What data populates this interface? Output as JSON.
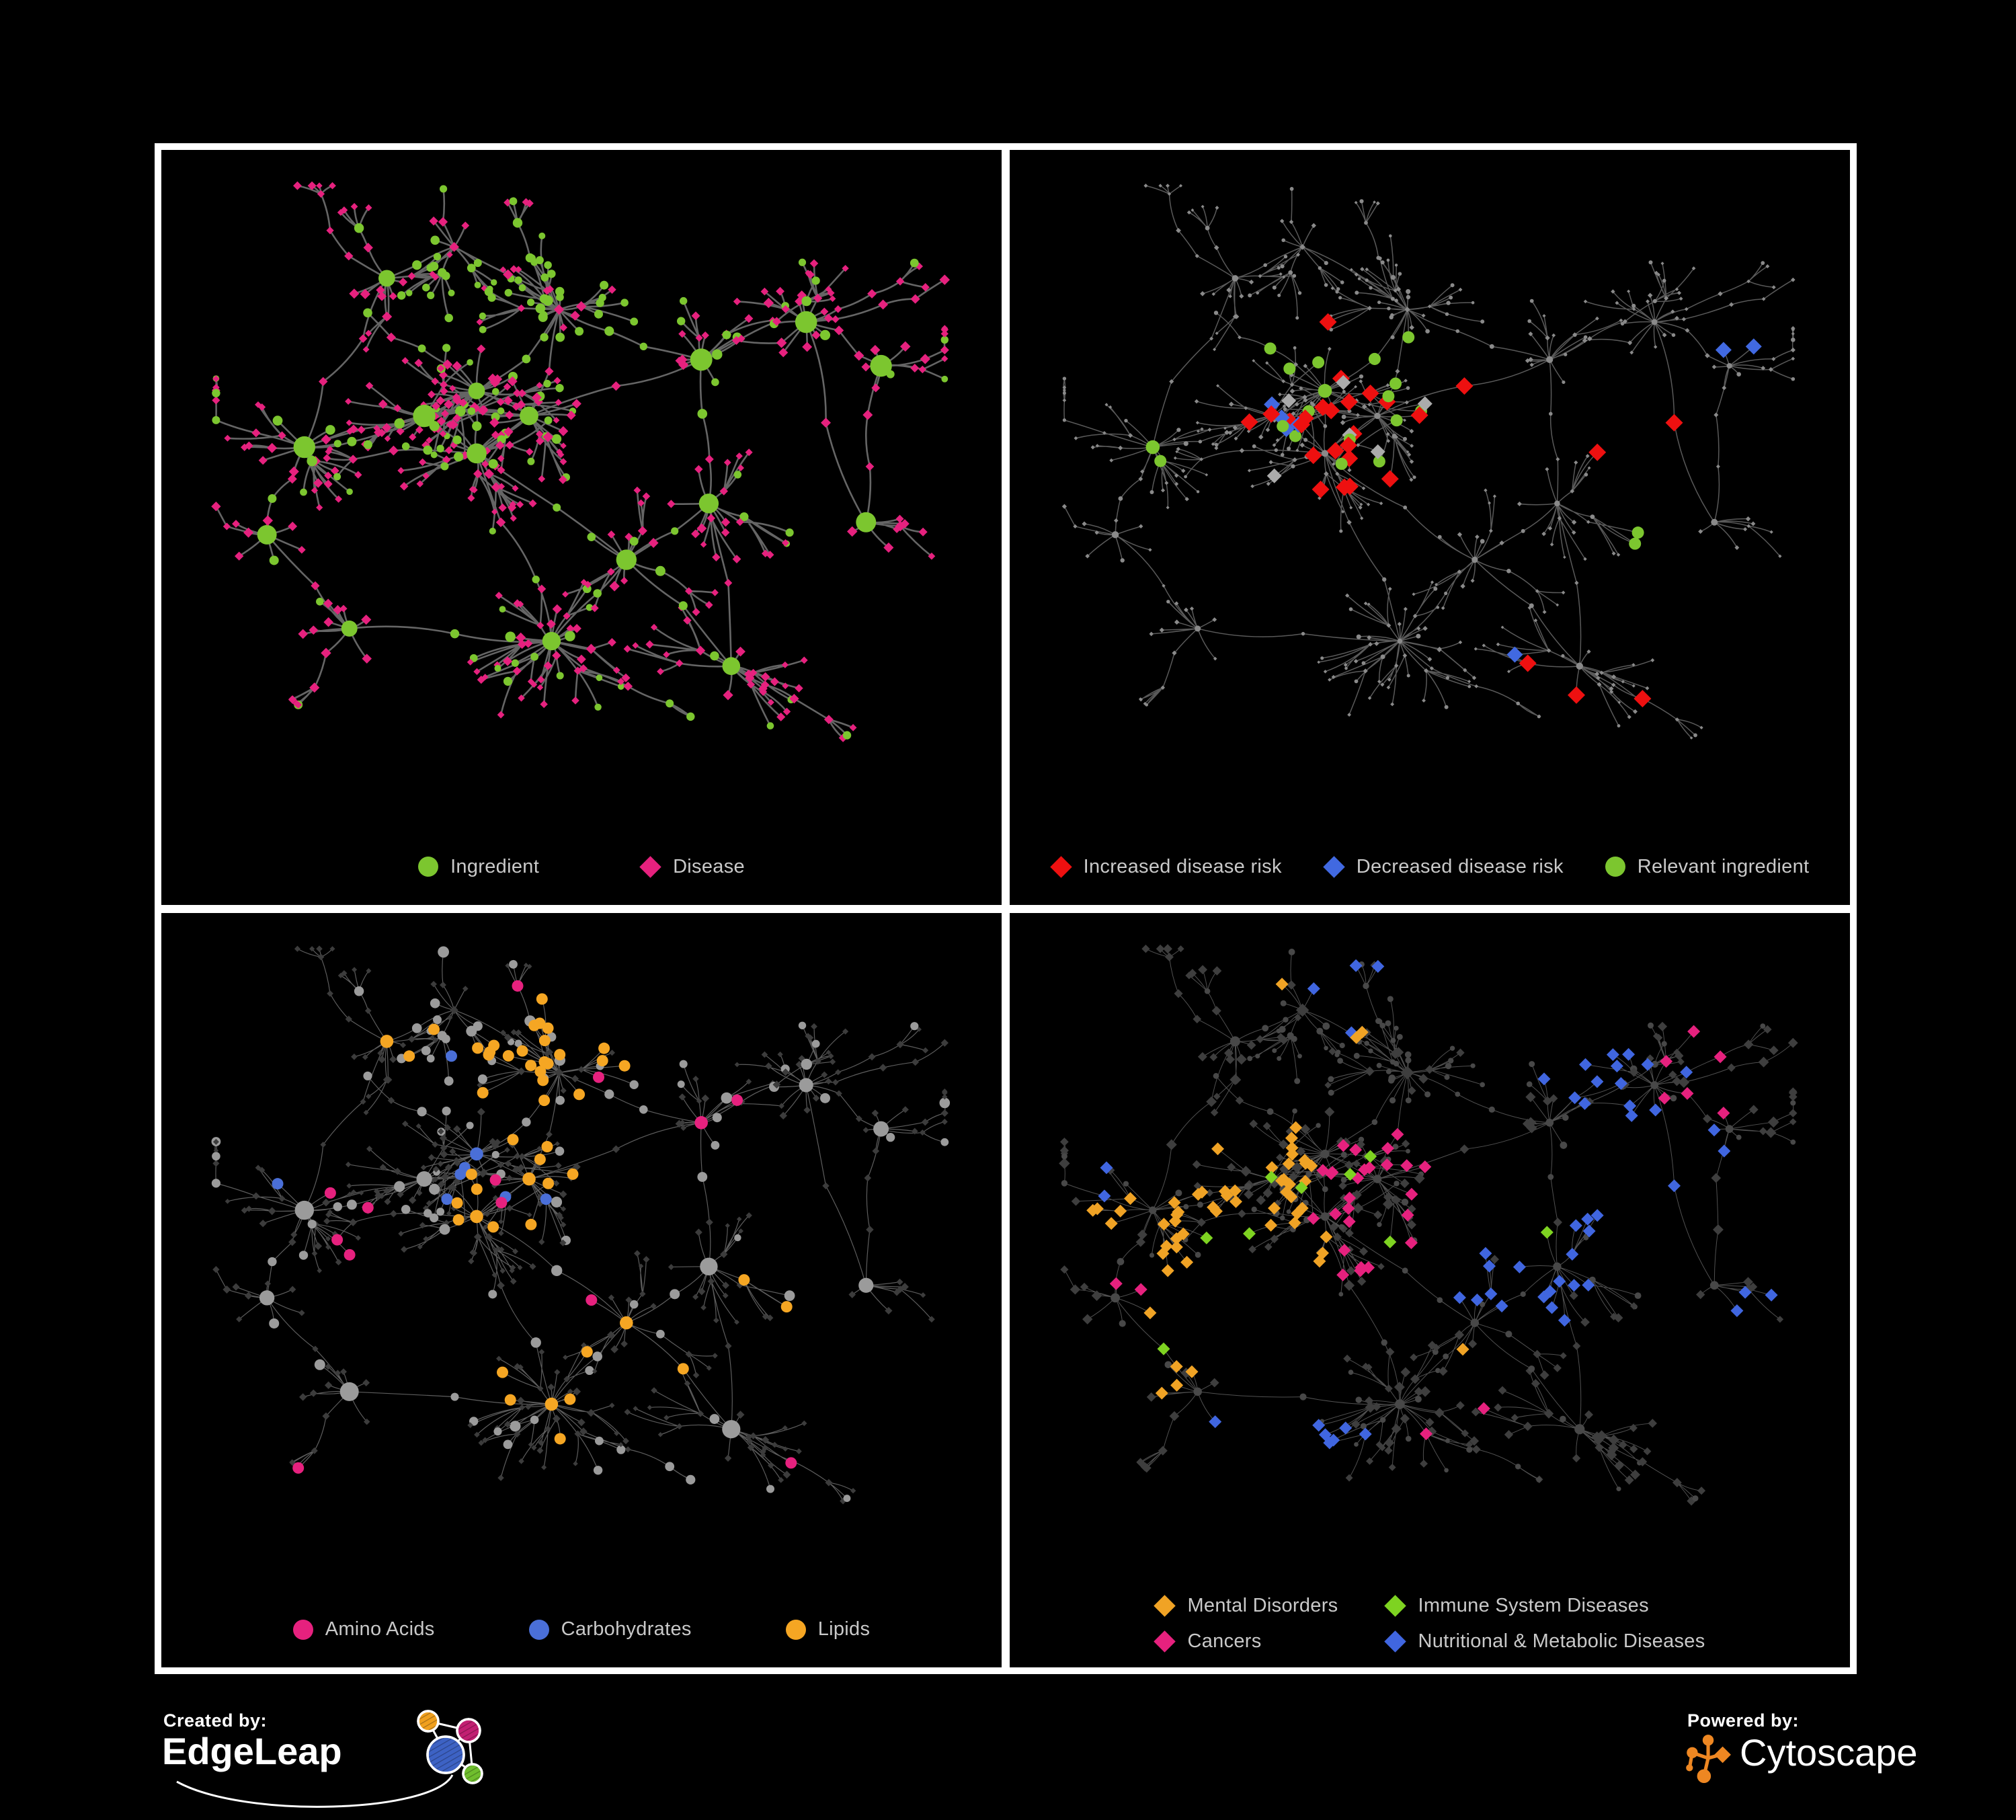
{
  "page": {
    "background": "#000000",
    "frame_color": "#FFFFFF",
    "legend_text_color": "#C9C9C9"
  },
  "panels": [
    {
      "name": "ingredient-disease-network",
      "legend": {
        "layout": "row",
        "gap": 150,
        "items": [
          {
            "label": "Ingredient",
            "shape": "circle",
            "color": "#7CC62F"
          },
          {
            "label": "Disease",
            "shape": "diamond",
            "color": "#E6217E"
          }
        ]
      },
      "paint": {
        "edge": {
          "color": "#6A6A6A",
          "width": 2.6,
          "opacity": 0.95
        },
        "ingredient": {
          "shape": "circle",
          "color": "#7CC62F",
          "leaf": 6.5,
          "hub": 14
        },
        "disease": {
          "shape": "diamond",
          "color": "#E6217E",
          "leaf": 6.5,
          "hub": 8.5
        },
        "highlights": []
      }
    },
    {
      "name": "disease-risk-network",
      "legend": {
        "layout": "row",
        "gap": 62,
        "items": [
          {
            "label": "Increased disease risk",
            "shape": "diamond",
            "color": "#EE1010"
          },
          {
            "label": "Decreased disease risk",
            "shape": "diamond",
            "color": "#4169E1"
          },
          {
            "label": "Relevant ingredient",
            "shape": "circle",
            "color": "#7CC62F"
          }
        ]
      },
      "paint": {
        "edge": {
          "color": "#5E5E5E",
          "width": 1.5,
          "opacity": 0.95
        },
        "ingredient": {
          "shape": "circle",
          "color": "#8A8A8A",
          "leaf": 3,
          "hub": 4.5
        },
        "disease": {
          "shape": "diamond",
          "color": "#8A8A8A",
          "leaf": 3.2,
          "hub": 4.5
        },
        "highlights": [
          {
            "name": "increased-risk",
            "target": "disease",
            "shape": "diamond",
            "color": "#EE1010",
            "size": 13,
            "regions": [
              [
                0.41,
                0.38,
                0.17,
                20
              ],
              [
                0.73,
                0.77,
                0.1,
                3
              ],
              [
                0.78,
                0.43,
                0.07,
                2
              ],
              [
                0.56,
                0.31,
                0.05,
                1
              ],
              [
                0.47,
                0.47,
                0.1,
                2
              ]
            ]
          },
          {
            "name": "decreased-risk",
            "target": "disease",
            "shape": "diamond",
            "color": "#4169E1",
            "size": 12,
            "regions": [
              [
                0.27,
                0.385,
                0.06,
                3
              ],
              [
                0.9,
                0.28,
                0.06,
                2
              ],
              [
                0.335,
                0.42,
                0.04,
                1
              ],
              [
                0.6,
                0.78,
                0.05,
                1
              ]
            ]
          },
          {
            "name": "neutral-risk",
            "target": "disease",
            "shape": "diamond",
            "color": "#ABABAB",
            "size": 11,
            "regions": [
              [
                0.44,
                0.4,
                0.15,
                5
              ],
              [
                0.3,
                0.47,
                0.06,
                1
              ]
            ]
          },
          {
            "name": "relevant-ingredient",
            "target": "ingredient",
            "shape": "circle",
            "color": "#7CC62F",
            "size": 9,
            "regions": [
              [
                0.42,
                0.36,
                0.16,
                14
              ],
              [
                0.3,
                0.3,
                0.05,
                2
              ],
              [
                0.15,
                0.41,
                0.06,
                2
              ],
              [
                0.63,
                0.12,
                0.05,
                1
              ],
              [
                0.74,
                0.61,
                0.07,
                2
              ],
              [
                0.86,
                0.44,
                0.05,
                1
              ]
            ]
          }
        ]
      }
    },
    {
      "name": "nutrient-class-network",
      "legend": {
        "layout": "row",
        "gap": 140,
        "items": [
          {
            "label": "Amino Acids",
            "shape": "circle",
            "color": "#E6217E"
          },
          {
            "label": "Carbohydrates",
            "shape": "circle",
            "color": "#4A6FD8"
          },
          {
            "label": "Lipids",
            "shape": "circle",
            "color": "#F5A623"
          }
        ]
      },
      "paint": {
        "edge": {
          "color": "#8F8F8F",
          "width": 1.2,
          "opacity": 0.65
        },
        "ingredient": {
          "shape": "circle",
          "color": "#9B9B9B",
          "leaf": 7,
          "hub": 12
        },
        "disease": {
          "shape": "diamond",
          "color": "#3C3C3C",
          "leaf": 5,
          "hub": 6
        },
        "highlights": [
          {
            "name": "lipids",
            "target": "ingredient",
            "shape": "circle",
            "color": "#F5A623",
            "size": 8.5,
            "regions": [
              [
                0.46,
                0.22,
                0.13,
                26
              ],
              [
                0.43,
                0.42,
                0.1,
                9
              ],
              [
                0.46,
                0.73,
                0.09,
                5
              ],
              [
                0.62,
                0.55,
                0.25,
                6
              ],
              [
                0.25,
                0.12,
                0.1,
                3
              ]
            ]
          },
          {
            "name": "amino-acids",
            "target": "ingredient",
            "shape": "circle",
            "color": "#E6217E",
            "size": 8.5,
            "regions": [
              [
                0.5,
                0.5,
                0.6,
                13
              ]
            ]
          },
          {
            "name": "carbohydrates",
            "target": "ingredient",
            "shape": "circle",
            "color": "#4A6FD8",
            "size": 8.5,
            "regions": [
              [
                0.41,
                0.39,
                0.1,
                6
              ],
              [
                0.12,
                0.33,
                0.07,
                2
              ],
              [
                0.7,
                0.62,
                0.08,
                1
              ],
              [
                0.3,
                0.22,
                0.06,
                1
              ]
            ]
          }
        ]
      }
    },
    {
      "name": "disease-class-network",
      "legend": {
        "layout": "grid",
        "col_gap": 70,
        "row_gap": 20,
        "items": [
          {
            "label": "Mental Disorders",
            "shape": "diamond",
            "color": "#F0A325"
          },
          {
            "label": "Immune System Diseases",
            "shape": "diamond",
            "color": "#7ED321"
          },
          {
            "label": "Cancers",
            "shape": "diamond",
            "color": "#E6217E"
          },
          {
            "label": "Nutritional & Metabolic Diseases",
            "shape": "diamond",
            "color": "#4066E0"
          }
        ]
      },
      "paint": {
        "edge": {
          "color": "#A0A0A0",
          "width": 1.0,
          "opacity": 0.5
        },
        "ingredient": {
          "shape": "circle",
          "color": "#484848",
          "leaf": 4.5,
          "hub": 6.5
        },
        "disease": {
          "shape": "diamond",
          "color": "#3E3E3E",
          "leaf": 7,
          "hub": 9
        },
        "highlights": [
          {
            "name": "mental-disorders",
            "target": "disease",
            "shape": "diamond",
            "color": "#F0A325",
            "size": 9.5,
            "regions": [
              [
                0.21,
                0.46,
                0.17,
                44
              ],
              [
                0.28,
                0.3,
                0.08,
                6
              ],
              [
                0.35,
                0.11,
                0.07,
                3
              ],
              [
                0.15,
                0.65,
                0.08,
                4
              ],
              [
                0.55,
                0.7,
                0.05,
                1
              ],
              [
                0.75,
                0.5,
                0.04,
                1
              ]
            ]
          },
          {
            "name": "cancers",
            "target": "disease",
            "shape": "diamond",
            "color": "#E6217E",
            "size": 9.5,
            "regions": [
              [
                0.46,
                0.43,
                0.13,
                26
              ],
              [
                0.85,
                0.22,
                0.08,
                6
              ],
              [
                0.52,
                0.12,
                0.06,
                2
              ],
              [
                0.13,
                0.55,
                0.05,
                2
              ],
              [
                0.55,
                0.8,
                0.06,
                2
              ],
              [
                0.35,
                0.6,
                0.05,
                2
              ]
            ]
          },
          {
            "name": "nutritional-metabolic",
            "target": "disease",
            "shape": "diamond",
            "color": "#4066E0",
            "size": 9.5,
            "regions": [
              [
                0.62,
                0.5,
                0.13,
                18
              ],
              [
                0.8,
                0.33,
                0.14,
                14
              ],
              [
                0.68,
                0.14,
                0.1,
                6
              ],
              [
                0.3,
                0.76,
                0.12,
                7
              ],
              [
                0.42,
                0.06,
                0.1,
                4
              ],
              [
                0.9,
                0.6,
                0.08,
                3
              ],
              [
                0.05,
                0.4,
                0.05,
                2
              ]
            ]
          },
          {
            "name": "immune-system",
            "target": "disease",
            "shape": "diamond",
            "color": "#7ED321",
            "size": 9.5,
            "regions": [
              [
                0.45,
                0.3,
                0.2,
                5
              ],
              [
                0.25,
                0.55,
                0.1,
                2
              ],
              [
                0.6,
                0.4,
                0.1,
                1
              ],
              [
                0.1,
                0.7,
                0.08,
                1
              ]
            ]
          }
        ]
      }
    }
  ],
  "footer": {
    "created_by": "Created by:",
    "edgeleap": "EdgeLeap",
    "powered_by": "Powered by:",
    "cytoscape": "Cytoscape",
    "logo_colors": {
      "edgeleap_blue": "#3D62C4",
      "edgeleap_orange": "#F0A01E",
      "edgeleap_magenta": "#C21F72",
      "edgeleap_green": "#6FBE2D",
      "edgeleap_stroke": "#FFFFFF",
      "cytoscape_orange": "#EE8722"
    }
  },
  "network_spec": {
    "seed": 20240611,
    "subhub_p": 0.25,
    "clusters": [
      [
        0.36,
        0.34,
        20,
        0.055,
        "disease",
        "ingredient"
      ],
      [
        0.43,
        0.38,
        18,
        0.05,
        "disease",
        "ingredient"
      ],
      [
        0.36,
        0.44,
        16,
        0.05,
        "disease",
        "ingredient"
      ],
      [
        0.29,
        0.38,
        14,
        0.05,
        "disease",
        "ingredient"
      ],
      [
        0.47,
        0.21,
        18,
        0.045,
        "ingredient",
        "disease"
      ],
      [
        0.24,
        0.16,
        9,
        0.05,
        "disease",
        "ingredient"
      ],
      [
        0.13,
        0.43,
        11,
        0.05,
        "disease",
        "ingredient"
      ],
      [
        0.46,
        0.74,
        22,
        0.055,
        "disease",
        "ingredient"
      ],
      [
        0.19,
        0.72,
        9,
        0.045,
        "disease",
        "ingredient"
      ],
      [
        0.66,
        0.29,
        11,
        0.05,
        "disease",
        "ingredient"
      ],
      [
        0.8,
        0.23,
        13,
        0.05,
        "disease",
        "ingredient"
      ],
      [
        0.67,
        0.52,
        9,
        0.045,
        "disease",
        "ingredient"
      ],
      [
        0.7,
        0.78,
        11,
        0.05,
        "disease",
        "ingredient"
      ],
      [
        0.9,
        0.3,
        7,
        0.04,
        "disease",
        "ingredient"
      ],
      [
        0.33,
        0.11,
        7,
        0.04,
        "ingredient",
        "disease"
      ],
      [
        0.56,
        0.61,
        9,
        0.045,
        "disease",
        "ingredient"
      ],
      [
        0.08,
        0.57,
        7,
        0.04,
        "disease",
        "ingredient"
      ],
      [
        0.88,
        0.55,
        6,
        0.04,
        "disease",
        "ingredient"
      ]
    ],
    "backbone": [
      [
        0,
        1
      ],
      [
        1,
        2
      ],
      [
        2,
        3
      ],
      [
        3,
        0
      ],
      [
        0,
        4
      ],
      [
        1,
        4
      ],
      [
        4,
        14
      ],
      [
        14,
        5
      ],
      [
        5,
        6
      ],
      [
        3,
        6
      ],
      [
        2,
        7
      ],
      [
        7,
        8
      ],
      [
        8,
        16
      ],
      [
        6,
        16
      ],
      [
        1,
        9
      ],
      [
        9,
        10
      ],
      [
        10,
        13
      ],
      [
        9,
        11
      ],
      [
        11,
        15
      ],
      [
        15,
        7
      ],
      [
        11,
        12
      ],
      [
        12,
        15
      ],
      [
        13,
        17
      ],
      [
        10,
        17
      ],
      [
        4,
        9
      ],
      [
        2,
        15
      ]
    ],
    "chains": [
      [
        10,
        3
      ],
      [
        10,
        4
      ],
      [
        13,
        3
      ],
      [
        4,
        3
      ],
      [
        5,
        3
      ],
      [
        5,
        2
      ],
      [
        6,
        3
      ],
      [
        8,
        2
      ],
      [
        12,
        3
      ],
      [
        12,
        2
      ],
      [
        9,
        3
      ],
      [
        7,
        3
      ],
      [
        16,
        2
      ],
      [
        15,
        2
      ],
      [
        14,
        2
      ],
      [
        0,
        4
      ],
      [
        2,
        3
      ],
      [
        11,
        2
      ]
    ]
  }
}
